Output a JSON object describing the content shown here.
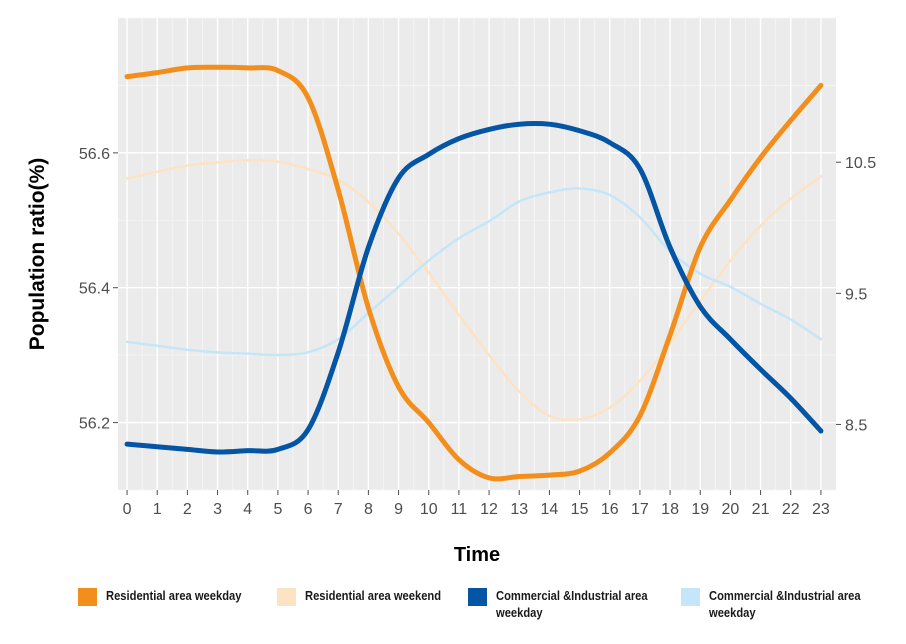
{
  "chart_data": {
    "type": "line",
    "title": "",
    "xlabel": "Time",
    "ylabel": "Population ratio(%)",
    "x": [
      0,
      1,
      2,
      3,
      4,
      5,
      6,
      7,
      8,
      9,
      10,
      11,
      12,
      13,
      14,
      15,
      16,
      17,
      18,
      19,
      20,
      21,
      22,
      23
    ],
    "xlim": [
      -0.3,
      23.5
    ],
    "x_ticks": [
      "0",
      "1",
      "2",
      "3",
      "4",
      "5",
      "6",
      "7",
      "8",
      "9",
      "10",
      "11",
      "12",
      "13",
      "14",
      "15",
      "16",
      "17",
      "18",
      "19",
      "20",
      "21",
      "22",
      "23"
    ],
    "y_left": {
      "lim": [
        56.1,
        56.8
      ],
      "ticks": [
        56.2,
        56.4,
        56.6
      ],
      "tick_labels": [
        "56.2",
        "56.4",
        "56.6"
      ]
    },
    "y_right": {
      "lim": [
        8.0,
        11.6
      ],
      "ticks": [
        8.5,
        9.5,
        10.5
      ],
      "tick_labels": [
        "8.5",
        "9.5",
        "10.5"
      ]
    },
    "grid": true,
    "legend_position": "bottom",
    "series": [
      {
        "name": "Residential area weekend",
        "axis": "left",
        "color": "#fde3c3",
        "width": 2.5,
        "values": [
          56.562,
          56.572,
          56.581,
          56.586,
          56.589,
          56.587,
          56.576,
          56.56,
          56.527,
          56.48,
          56.422,
          56.36,
          56.3,
          56.246,
          56.21,
          56.205,
          56.222,
          56.262,
          56.318,
          56.38,
          56.44,
          56.492,
          56.532,
          56.565
        ]
      },
      {
        "name": "Commercial &Industrial area weekday",
        "axis": "right",
        "color": "#c5e6f8",
        "width": 2.5,
        "values": [
          9.13,
          9.1,
          9.07,
          9.05,
          9.04,
          9.03,
          9.05,
          9.15,
          9.35,
          9.55,
          9.75,
          9.92,
          10.05,
          10.2,
          10.27,
          10.3,
          10.25,
          10.08,
          9.82,
          9.65,
          9.55,
          9.42,
          9.3,
          9.15
        ]
      },
      {
        "name": "Residential area weekday",
        "axis": "left",
        "color": "#f28e1c",
        "width": 5,
        "values": [
          56.713,
          56.719,
          56.726,
          56.727,
          56.726,
          56.722,
          56.682,
          56.545,
          56.37,
          56.253,
          56.2,
          56.145,
          56.118,
          56.12,
          56.122,
          56.128,
          56.155,
          56.21,
          56.33,
          56.46,
          56.53,
          56.593,
          56.648,
          56.7
        ]
      },
      {
        "name": "Commercial &Industrial area weekday",
        "axis": "right",
        "color": "#0555a5",
        "width": 5,
        "values": [
          8.35,
          8.33,
          8.31,
          8.29,
          8.3,
          8.31,
          8.46,
          9.05,
          9.85,
          10.38,
          10.56,
          10.68,
          10.75,
          10.79,
          10.79,
          10.74,
          10.65,
          10.45,
          9.85,
          9.4,
          9.15,
          8.92,
          8.7,
          8.45
        ]
      }
    ]
  },
  "legend": [
    {
      "label": "Residential area weekday",
      "color": "#f28e1c"
    },
    {
      "label": "Residential area weekend",
      "color": "#fde3c3"
    },
    {
      "label": "Commercial &Industrial area weekday",
      "color": "#0555a5"
    },
    {
      "label": "Commercial &Industrial area weekday",
      "color": "#c5e6f8"
    }
  ]
}
